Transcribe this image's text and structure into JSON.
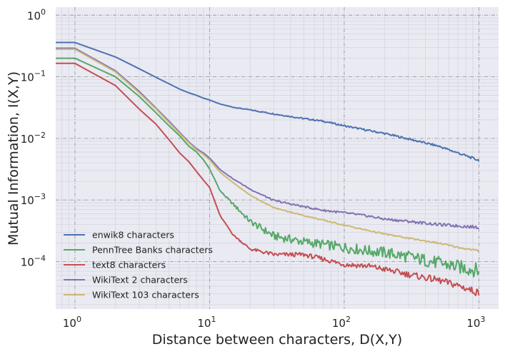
{
  "chart_data": {
    "type": "line",
    "title": "",
    "xlabel": "Distance between characters, D(X,Y)",
    "ylabel": "Mutual Information, I(X,Y)",
    "xscale": "log",
    "yscale": "log",
    "xlim": [
      0.72,
      1400
    ],
    "ylim": [
      1.7e-05,
      1.35
    ],
    "grid": true,
    "legend_position": "lower-left",
    "x_ticks": [
      {
        "base": "10",
        "exp": "0",
        "value": 1
      },
      {
        "base": "10",
        "exp": "1",
        "value": 10
      },
      {
        "base": "10",
        "exp": "2",
        "value": 100
      },
      {
        "base": "10",
        "exp": "3",
        "value": 1000
      }
    ],
    "y_ticks": [
      {
        "base": "10",
        "exp": "0",
        "value": 1
      },
      {
        "base": "10",
        "exp": "−1",
        "value": 0.1
      },
      {
        "base": "10",
        "exp": "−2",
        "value": 0.01
      },
      {
        "base": "10",
        "exp": "−3",
        "value": 0.001
      },
      {
        "base": "10",
        "exp": "−4",
        "value": 0.0001
      }
    ],
    "x": [
      0.72,
      1,
      2,
      3,
      4,
      5,
      6,
      7,
      8,
      9,
      10,
      12,
      15,
      20,
      30,
      50,
      70,
      100,
      150,
      200,
      300,
      500,
      700,
      1000
    ],
    "series": [
      {
        "name": "enwik8 characters",
        "color": "#4c72b0",
        "values": [
          0.36,
          0.36,
          0.21,
          0.135,
          0.098,
          0.077,
          0.063,
          0.055,
          0.05,
          0.045,
          0.042,
          0.036,
          0.032,
          0.029,
          0.025,
          0.021,
          0.019,
          0.016,
          0.0135,
          0.012,
          0.0098,
          0.0075,
          0.0058,
          0.0044
        ]
      },
      {
        "name": "PennTree Banks characters",
        "color": "#55a868",
        "values": [
          0.2,
          0.2,
          0.1,
          0.048,
          0.026,
          0.016,
          0.011,
          0.0075,
          0.006,
          0.0045,
          0.0032,
          0.0014,
          0.00085,
          0.00045,
          0.00026,
          0.00021,
          0.00019,
          0.00017,
          0.00015,
          0.00014,
          0.00012,
          9.5e-05,
          8.2e-05,
          7.2e-05
        ]
      },
      {
        "name": "text8 characters",
        "color": "#c44e52",
        "values": [
          0.165,
          0.165,
          0.072,
          0.03,
          0.017,
          0.0095,
          0.0058,
          0.0042,
          0.0029,
          0.0021,
          0.0016,
          0.00055,
          0.00027,
          0.00016,
          0.00013,
          0.00013,
          0.00011,
          9e-05,
          8.5e-05,
          7.5e-05,
          6.2e-05,
          5e-05,
          4.1e-05,
          3.1e-05
        ]
      },
      {
        "name": "WikiText 2 characters",
        "color": "#8172b2",
        "values": [
          0.29,
          0.29,
          0.125,
          0.058,
          0.031,
          0.019,
          0.0125,
          0.0088,
          0.0068,
          0.0058,
          0.0048,
          0.0031,
          0.0022,
          0.0015,
          0.00098,
          0.00078,
          0.00068,
          0.00062,
          0.00055,
          0.00049,
          0.00045,
          0.0004,
          0.00038,
          0.00036
        ]
      },
      {
        "name": "WikiText 103 characters",
        "color": "#ccb974",
        "values": [
          0.28,
          0.28,
          0.12,
          0.055,
          0.03,
          0.018,
          0.012,
          0.0085,
          0.0065,
          0.0055,
          0.0045,
          0.0028,
          0.0019,
          0.0012,
          0.00075,
          0.00056,
          0.00047,
          0.00039,
          0.00032,
          0.00028,
          0.00024,
          0.0002,
          0.00017,
          0.00015
        ]
      }
    ]
  }
}
